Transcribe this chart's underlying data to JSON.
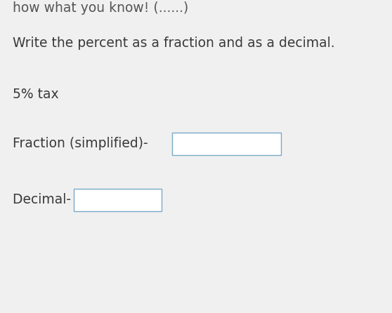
{
  "background_color": "#f0f0f0",
  "instruction_text": "Write the percent as a fraction and as a decimal.",
  "problem_text": "5% tax",
  "fraction_label": "Fraction (simplified)- ",
  "decimal_label": "Decimal- ",
  "box_edge_color": "#7aaac8",
  "box_face_color": "#ffffff",
  "text_color": "#3a3a3a",
  "top_clip_text": "how what you know! (......)",
  "top_clip_color": "#555555",
  "font_size": 13.5,
  "font_size_top": 13.5,
  "fig_width": 5.58,
  "fig_height": 4.46,
  "dpi": 100
}
